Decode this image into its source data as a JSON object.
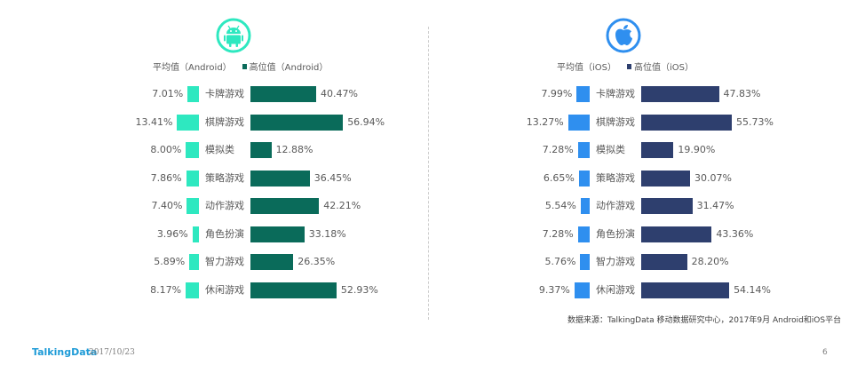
{
  "colors": {
    "android_avg": "#2ee8c0",
    "android_high": "#0a6b5a",
    "ios_avg": "#2f8fef",
    "ios_high": "#2e3f6e",
    "android_icon": "#2ee8c0",
    "ios_icon": "#2f8fef"
  },
  "icons": {
    "android": "android-icon",
    "ios": "apple-icon"
  },
  "legend": {
    "android_avg": "平均值（Android）",
    "android_high": "高位值（Android）",
    "ios_avg": "平均值（iOS）",
    "ios_high": "高位值（iOS）"
  },
  "chart_data": [
    {
      "type": "bar",
      "platform": "Android",
      "categories": [
        "卡牌游戏",
        "棋牌游戏",
        "模拟类",
        "策略游戏",
        "动作游戏",
        "角色扮演",
        "智力游戏",
        "休闲游戏"
      ],
      "series": [
        {
          "name": "平均值（Android）",
          "values": [
            7.01,
            13.41,
            8.0,
            7.86,
            7.4,
            3.96,
            5.89,
            8.17
          ],
          "labels": [
            "7.01%",
            "13.41%",
            "8.00%",
            "7.86%",
            "7.40%",
            "3.96%",
            "5.89%",
            "8.17%"
          ]
        },
        {
          "name": "高位值（Android）",
          "values": [
            40.47,
            56.94,
            12.88,
            36.45,
            42.21,
            33.18,
            26.35,
            52.93
          ],
          "labels": [
            "40.47%",
            "56.94%",
            "12.88%",
            "36.45%",
            "42.21%",
            "33.18%",
            "26.35%",
            "52.93%"
          ]
        }
      ]
    },
    {
      "type": "bar",
      "platform": "iOS",
      "categories": [
        "卡牌游戏",
        "棋牌游戏",
        "模拟类",
        "策略游戏",
        "动作游戏",
        "角色扮演",
        "智力游戏",
        "休闲游戏"
      ],
      "series": [
        {
          "name": "平均值（iOS）",
          "values": [
            7.99,
            13.27,
            7.28,
            6.65,
            5.54,
            7.28,
            5.76,
            9.37
          ],
          "labels": [
            "7.99%",
            "13.27%",
            "7.28%",
            "6.65%",
            "5.54%",
            "7.28%",
            "5.76%",
            "9.37%"
          ]
        },
        {
          "name": "高位值（iOS）",
          "values": [
            47.83,
            55.73,
            19.9,
            30.07,
            31.47,
            43.36,
            28.2,
            54.14
          ],
          "labels": [
            "47.83%",
            "55.73%",
            "19.90%",
            "30.07%",
            "31.47%",
            "43.36%",
            "28.20%",
            "54.14%"
          ]
        }
      ]
    }
  ],
  "source": "数据来源：TalkingData 移动数据研究中心，2017年9月 Android和iOS平台",
  "footer": {
    "brand": "TalkingData",
    "date": "2017/10/23",
    "page": "6"
  }
}
